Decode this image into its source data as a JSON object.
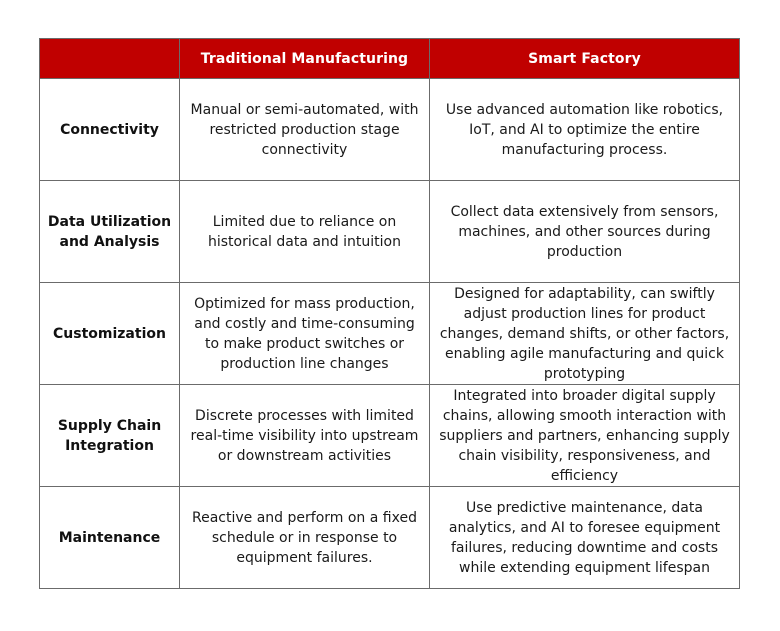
{
  "table": {
    "colors": {
      "header_bg": "#c00000",
      "header_text": "#ffffff",
      "border": "#6b6b6b",
      "body_text": "#1a1a1a"
    },
    "headers": [
      "",
      "Traditional Manufacturing",
      "Smart Factory"
    ],
    "rows": [
      {
        "feature": "Connectivity",
        "traditional": "Manual or semi-automated, with restricted production stage connectivity",
        "smart": "Use advanced automation like robotics, IoT, and AI to optimize the entire manufacturing process."
      },
      {
        "feature": "Data Utilization and Analysis",
        "traditional": "Limited due to reliance on historical data and intuition",
        "smart": "Collect data extensively from sensors, machines, and other sources during production"
      },
      {
        "feature": "Customization",
        "traditional": "Optimized for mass production, and costly and time-consuming to make product switches or production line changes",
        "smart": "Designed for adaptability, can swiftly adjust production lines for product changes, demand shifts, or other factors, enabling agile manufacturing and quick prototyping"
      },
      {
        "feature": "Supply Chain Integration",
        "traditional": "Discrete processes with limited real-time visibility into upstream or downstream activities",
        "smart": "Integrated into broader digital supply chains, allowing smooth interaction with suppliers and partners, enhancing supply chain visibility, responsiveness, and efficiency"
      },
      {
        "feature": "Maintenance",
        "traditional": "Reactive and perform on a fixed schedule or in response to equipment failures.",
        "smart": "Use predictive maintenance, data analytics, and AI to foresee equipment failures, reducing downtime and costs while extending equipment lifespan"
      }
    ]
  }
}
